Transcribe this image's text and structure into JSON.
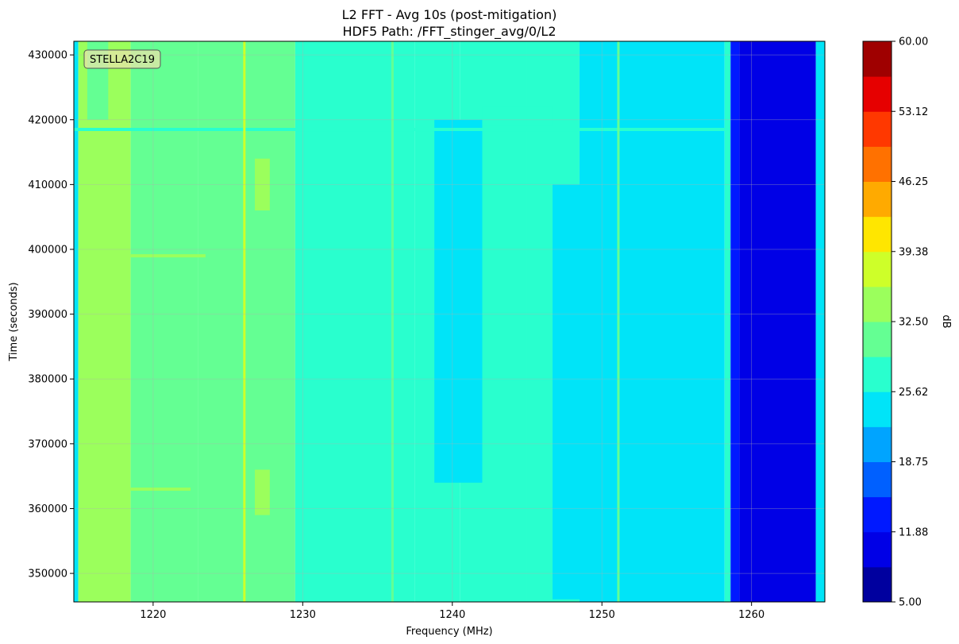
{
  "chart_data": {
    "type": "heatmap",
    "title": "L2 FFT - Avg 10s (post-mitigation)",
    "subtitle": "HDF5 Path: /FFT_stinger_avg/0/L2",
    "xlabel": "Frequency (MHz)",
    "ylabel": "Time (seconds)",
    "xlim": [
      1214.7,
      1264.9
    ],
    "ylim": [
      345600,
      432100
    ],
    "x_ticks": [
      1220,
      1230,
      1240,
      1250,
      1260
    ],
    "y_ticks": [
      350000,
      360000,
      370000,
      380000,
      390000,
      400000,
      410000,
      420000,
      430000
    ],
    "grid": true,
    "annotation": "STELLA2C19",
    "colorbar": {
      "label": "dB",
      "min": 5.0,
      "max": 60.0,
      "tick_labels": [
        "5.00",
        "11.88",
        "18.75",
        "25.62",
        "32.50",
        "39.38",
        "46.25",
        "53.12",
        "60.00"
      ],
      "levels": 16,
      "colormap": [
        "#00009f",
        "#0000e6",
        "#0019ff",
        "#0060ff",
        "#00a4ff",
        "#00e4f8",
        "#29ffce",
        "#64ff93",
        "#9bff5c",
        "#ceff29",
        "#ffe600",
        "#ffaa00",
        "#ff7100",
        "#ff3800",
        "#e60000",
        "#9f0000"
      ]
    },
    "frequency_bands_db": [
      {
        "from": 1214.7,
        "to": 1215.0,
        "db": 24.5
      },
      {
        "from": 1215.0,
        "to": 1218.5,
        "db": 35.5
      },
      {
        "from": 1218.5,
        "to": 1223.0,
        "db": 31.5
      },
      {
        "from": 1223.0,
        "to": 1229.5,
        "db": 31.0
      },
      {
        "from": 1229.5,
        "to": 1237.5,
        "db": 28.5
      },
      {
        "from": 1237.5,
        "to": 1240.5,
        "db": 26.5
      },
      {
        "from": 1240.5,
        "to": 1245.0,
        "db": 27.8
      },
      {
        "from": 1245.0,
        "to": 1248.5,
        "db": 27.3
      },
      {
        "from": 1248.5,
        "to": 1258.2,
        "db": 24.5
      },
      {
        "from": 1258.2,
        "to": 1258.6,
        "db": 28.5
      },
      {
        "from": 1258.6,
        "to": 1259.2,
        "db": 13.5
      },
      {
        "from": 1259.2,
        "to": 1264.3,
        "db": 11.5
      },
      {
        "from": 1264.3,
        "to": 1264.9,
        "db": 24.5
      }
    ],
    "narrowband_lines": [
      {
        "freq": 1226.1,
        "db": 38.0
      },
      {
        "freq": 1236.0,
        "db": 31.0
      },
      {
        "freq": 1251.1,
        "db": 31.0
      }
    ],
    "patches": [
      {
        "f1": 1238.8,
        "f2": 1242.0,
        "t1": 364000,
        "t2": 420000,
        "db": 24.5
      },
      {
        "f1": 1246.7,
        "f2": 1249.0,
        "t1": 346000,
        "t2": 410000,
        "db": 24.5
      },
      {
        "f1": 1226.8,
        "f2": 1227.8,
        "t1": 359000,
        "t2": 366000,
        "db": 35.5
      },
      {
        "f1": 1226.8,
        "f2": 1227.8,
        "t1": 406000,
        "t2": 414000,
        "db": 35.5
      },
      {
        "f1": 1215.6,
        "f2": 1217.0,
        "t1": 420000,
        "t2": 432100,
        "db": 31.5
      },
      {
        "f1": 1242.0,
        "f2": 1246.7,
        "t1": 419000,
        "t2": 422000,
        "db": 27.8
      }
    ],
    "horizontal_events": [
      {
        "time": 418500,
        "from": 1214.7,
        "to": 1258.4,
        "db": 29.0
      },
      {
        "time": 363000,
        "from": 1218.5,
        "to": 1222.5,
        "db": 35.5
      },
      {
        "time": 399000,
        "from": 1218.5,
        "to": 1223.5,
        "db": 35.5
      }
    ]
  }
}
